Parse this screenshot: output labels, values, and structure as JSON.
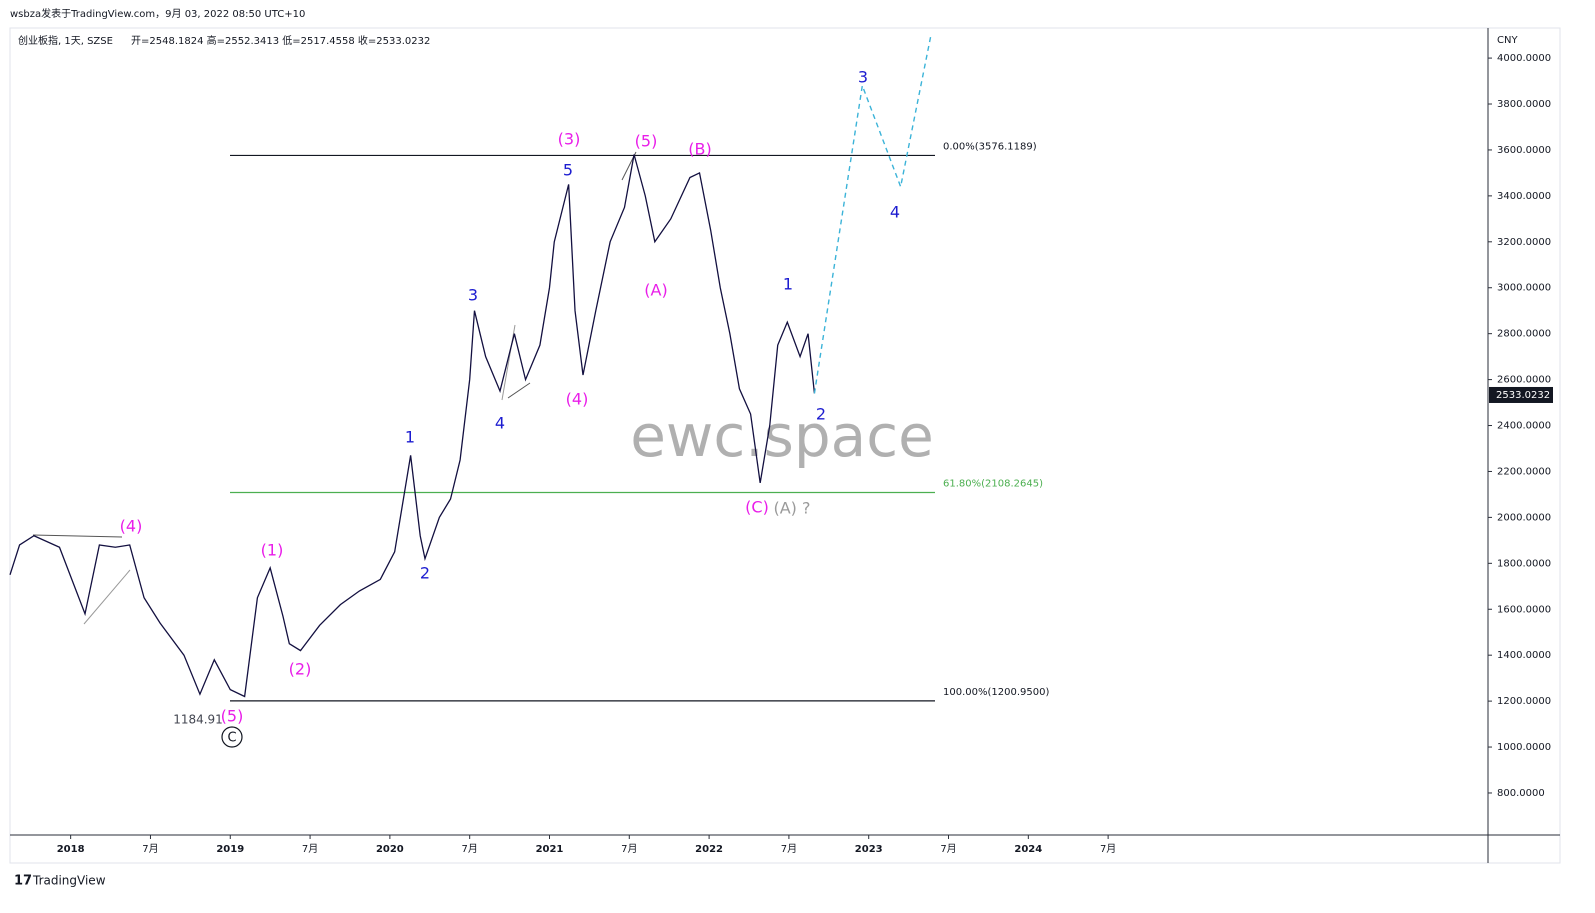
{
  "header": {
    "publisher": "wsbza发表于TradingView.com，9月 03, 2022 08:50 UTC+10",
    "symbol": "创业板指, 1天, SZSE",
    "ohlc": "开=2548.1824 高=2552.3413 低=2517.4558 收=2533.0232",
    "currency": "CNY",
    "watermark": "ewc.space",
    "footer": "TradingView"
  },
  "chart_data": {
    "type": "line",
    "color": "#131040",
    "x": [
      2017.62,
      2017.68,
      2017.77,
      2017.93,
      2018.09,
      2018.18,
      2018.28,
      2018.37,
      2018.46,
      2018.56,
      2018.71,
      2018.81,
      2018.9,
      2019.0,
      2019.09,
      2019.17,
      2019.25,
      2019.33,
      2019.37,
      2019.44,
      2019.56,
      2019.69,
      2019.81,
      2019.94,
      2020.03,
      2020.13,
      2020.19,
      2020.22,
      2020.31,
      2020.38,
      2020.44,
      2020.5,
      2020.53,
      2020.6,
      2020.69,
      2020.78,
      2020.85,
      2020.94,
      2021.0,
      2021.03,
      2021.12,
      2021.16,
      2021.21,
      2021.29,
      2021.38,
      2021.47,
      2021.53,
      2021.6,
      2021.66,
      2021.76,
      2021.88,
      2021.94,
      2022.01,
      2022.07,
      2022.13,
      2022.19,
      2022.26,
      2022.32,
      2022.38,
      2022.43,
      2022.49,
      2022.57,
      2022.62,
      2022.66
    ],
    "values": [
      1750,
      1880,
      1920,
      1870,
      1580,
      1880,
      1870,
      1880,
      1650,
      1540,
      1400,
      1230,
      1380,
      1250,
      1220,
      1650,
      1780,
      1570,
      1450,
      1420,
      1530,
      1620,
      1680,
      1730,
      1850,
      2270,
      1920,
      1820,
      2000,
      2080,
      2250,
      2600,
      2900,
      2700,
      2550,
      2800,
      2600,
      2750,
      3000,
      3200,
      3450,
      2900,
      2620,
      2900,
      3200,
      3350,
      3580,
      3400,
      3200,
      3300,
      3480,
      3500,
      3250,
      3000,
      2800,
      2560,
      2450,
      2150,
      2400,
      2750,
      2850,
      2700,
      2800,
      2540
    ],
    "projection": {
      "color": "#3bb3d8",
      "x": [
        2022.66,
        2022.96,
        2023.2,
        2023.39
      ],
      "values": [
        2540,
        3880,
        3440,
        4100
      ]
    },
    "last_price": {
      "value": 2533.0232,
      "label": "2533.0232"
    },
    "levels": [
      {
        "value": 3576.1189,
        "label": "0.00%(3576.1189)",
        "color": "#131722"
      },
      {
        "value": 2108.2645,
        "label": "61.80%(2108.2645)",
        "color": "#4caf50"
      },
      {
        "value": 1200.95,
        "label": "100.00%(1200.9500)",
        "color": "#131722"
      }
    ],
    "annotations": [
      {
        "text": "(4)",
        "color": "#e91ee9"
      },
      {
        "text": "(1)",
        "color": "#e91ee9"
      },
      {
        "text": "(2)",
        "color": "#e91ee9"
      },
      {
        "text": "(5)",
        "color": "#e91ee9"
      },
      {
        "text": "C",
        "color": "#131722"
      },
      {
        "text": "1184.91",
        "color": "#434651"
      },
      {
        "text": "1",
        "color": "#1c1cd0"
      },
      {
        "text": "2",
        "color": "#1c1cd0"
      },
      {
        "text": "3",
        "color": "#1c1cd0"
      },
      {
        "text": "4",
        "color": "#1c1cd0"
      },
      {
        "text": "5",
        "color": "#1c1cd0"
      },
      {
        "text": "(3)",
        "color": "#e91ee9"
      },
      {
        "text": "(4)",
        "color": "#e91ee9"
      },
      {
        "text": "(5)",
        "color": "#e91ee9"
      },
      {
        "text": "(A)",
        "color": "#e91ee9"
      },
      {
        "text": "(B)",
        "color": "#e91ee9"
      },
      {
        "text": "(C)",
        "color": "#e91ee9"
      },
      {
        "text": "(A) ?",
        "color": "#9a9a9a"
      },
      {
        "text": "1",
        "color": "#1c1cd0"
      },
      {
        "text": "2",
        "color": "#1c1cd0"
      },
      {
        "text": "3",
        "color": "#1c1cd0"
      },
      {
        "text": "4",
        "color": "#1c1cd0"
      }
    ],
    "xlim": [
      2017.62,
      2026.88
    ],
    "ylim": [
      617,
      4131
    ],
    "xticks": [
      {
        "value": 2018,
        "label": "2018"
      },
      {
        "value": 2018.5,
        "label": "7月"
      },
      {
        "value": 2019,
        "label": "2019"
      },
      {
        "value": 2019.5,
        "label": "7月"
      },
      {
        "value": 2020,
        "label": "2020"
      },
      {
        "value": 2020.5,
        "label": "7月"
      },
      {
        "value": 2021,
        "label": "2021"
      },
      {
        "value": 2021.5,
        "label": "7月"
      },
      {
        "value": 2022,
        "label": "2022"
      },
      {
        "value": 2022.5,
        "label": "7月"
      },
      {
        "value": 2023,
        "label": "2023"
      },
      {
        "value": 2023.5,
        "label": "7月"
      },
      {
        "value": 2024,
        "label": "2024"
      },
      {
        "value": 2024.5,
        "label": "7月"
      }
    ],
    "yticks": [
      {
        "value": 800,
        "label": "800.0000"
      },
      {
        "value": 1000,
        "label": "1000.0000"
      },
      {
        "value": 1200,
        "label": "1200.0000"
      },
      {
        "value": 1400,
        "label": "1400.0000"
      },
      {
        "value": 1600,
        "label": "1600.0000"
      },
      {
        "value": 1800,
        "label": "1800.0000"
      },
      {
        "value": 2000,
        "label": "2000.0000"
      },
      {
        "value": 2200,
        "label": "2200.0000"
      },
      {
        "value": 2400,
        "label": "2400.0000"
      },
      {
        "value": 2600,
        "label": "2600.0000"
      },
      {
        "value": 2800,
        "label": "2800.0000"
      },
      {
        "value": 3000,
        "label": "3000.0000"
      },
      {
        "value": 3200,
        "label": "3200.0000"
      },
      {
        "value": 3400,
        "label": "3400.0000"
      },
      {
        "value": 3600,
        "label": "3600.0000"
      },
      {
        "value": 3800,
        "label": "3800.0000"
      },
      {
        "value": 4000,
        "label": "4000.0000"
      }
    ]
  }
}
